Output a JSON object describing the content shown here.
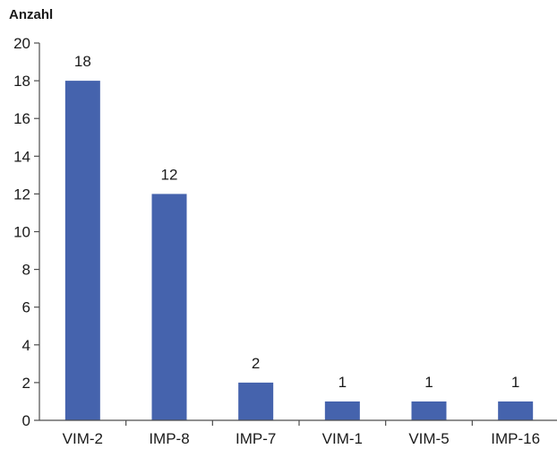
{
  "chart_data": {
    "type": "bar",
    "title": "",
    "xlabel": "",
    "ylabel": "Anzahl",
    "categories": [
      "VIM-2",
      "IMP-8",
      "IMP-7",
      "VIM-1",
      "VIM-5",
      "IMP-16"
    ],
    "values": [
      18,
      12,
      2,
      1,
      1,
      1
    ],
    "ylim": [
      0,
      20
    ],
    "yticks": [
      0,
      2,
      4,
      6,
      8,
      10,
      12,
      14,
      16,
      18,
      20
    ],
    "data_labels": [
      "18",
      "12",
      "2",
      "1",
      "1",
      "1"
    ],
    "grid": false,
    "legend": "none",
    "colors": {
      "bar": "#4563ad"
    }
  }
}
